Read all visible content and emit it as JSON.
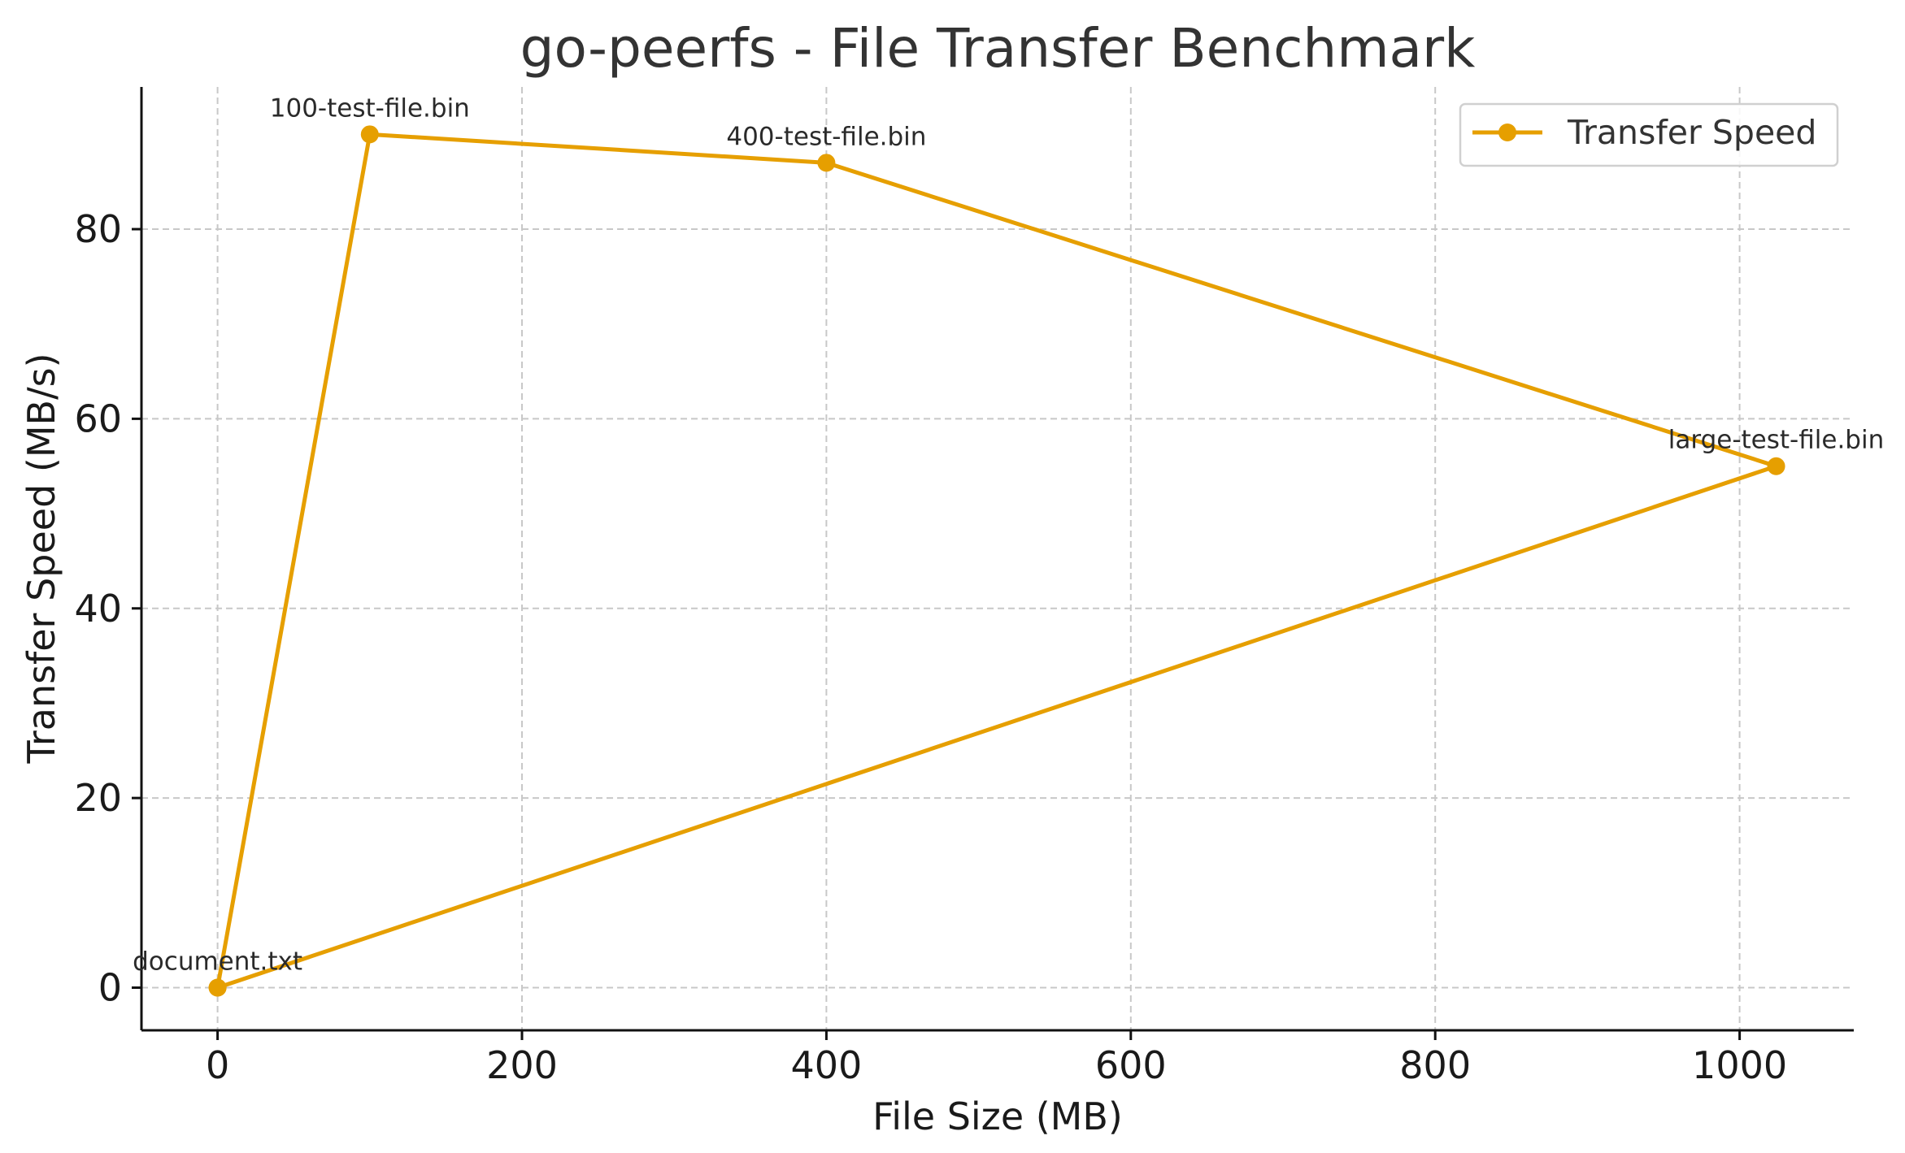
{
  "chart_data": {
    "type": "line",
    "title": "go-peerfs - File Transfer Benchmark",
    "xlabel": "File Size (MB)",
    "ylabel": "Transfer Speed (MB/s)",
    "xlim": [
      -50,
      1075
    ],
    "ylim": [
      -4.5,
      95
    ],
    "xticks": [
      0,
      200,
      400,
      600,
      800,
      1000
    ],
    "yticks": [
      0,
      20,
      40,
      60,
      80
    ],
    "grid": true,
    "legend_position": "top-right",
    "color": "#E69F00",
    "series": [
      {
        "name": "Transfer Speed",
        "points": [
          {
            "x": 0,
            "y": 0,
            "label": "document.txt"
          },
          {
            "x": 100,
            "y": 90,
            "label": "100-test-file.bin"
          },
          {
            "x": 400,
            "y": 87,
            "label": "400-test-file.bin"
          },
          {
            "x": 1024,
            "y": 55,
            "label": "large-test-file.bin"
          },
          {
            "x": 0,
            "y": 0,
            "label": ""
          }
        ]
      }
    ]
  }
}
